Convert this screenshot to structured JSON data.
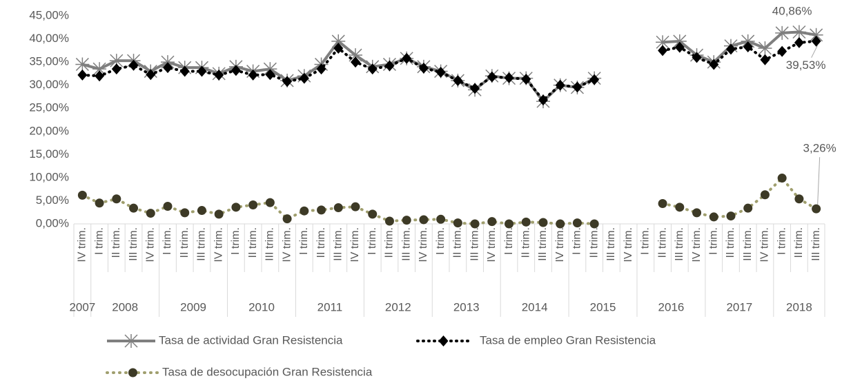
{
  "chart_data": {
    "type": "line",
    "categories": [
      "IV trim.",
      "I trim.",
      "II trim.",
      "III trim.",
      "IV trim.",
      "I trim.",
      "II trim.",
      "III trim.",
      "IV trim.",
      "I trim.",
      "II trim.",
      "III trim.",
      "IV trim.",
      "I trim.",
      "II trim.",
      "III trim.",
      "IV trim.",
      "I trim.",
      "II trim.",
      "III trim.",
      "IV trim.",
      "I trim.",
      "II trim.",
      "III trim.",
      "IV trim.",
      "I trim.",
      "II trim.",
      "III trim.",
      "IV trim.",
      "I trim.",
      "II trim.",
      "III trim.",
      "IV trim.",
      "I trim.",
      "II trim.",
      "III trim.",
      "IV trim.",
      "I trim.",
      "II trim.",
      "III trim.",
      "IV trim.",
      "I trim.",
      "II trim.",
      "III trim."
    ],
    "category_groups": [
      "2007",
      "2008",
      "2009",
      "2010",
      "2011",
      "2012",
      "2013",
      "2014",
      "2015",
      "2016",
      "2017",
      "2018"
    ],
    "ylim": [
      0,
      45
    ],
    "yticks": [
      {
        "value": 0,
        "label": "0,00%"
      },
      {
        "value": 5,
        "label": "5,00%"
      },
      {
        "value": 10,
        "label": "10,00%"
      },
      {
        "value": 15,
        "label": "15,00%"
      },
      {
        "value": 20,
        "label": "20,00%"
      },
      {
        "value": 25,
        "label": "25,00%"
      },
      {
        "value": 30,
        "label": "30,00%"
      },
      {
        "value": 35,
        "label": "35,00%"
      },
      {
        "value": 40,
        "label": "40,00%"
      },
      {
        "value": 45,
        "label": "45,00%"
      }
    ],
    "grid": false,
    "legend": "bottom",
    "series": [
      {
        "name": "Tasa de actividad Gran Resistencia",
        "color": "#7f7f7f",
        "marker": "x",
        "values": [
          34.5,
          33.5,
          35.3,
          35.3,
          33,
          35,
          33.8,
          33.8,
          32.5,
          34,
          33,
          33.5,
          31,
          32,
          34.5,
          39.5,
          36.5,
          34,
          34.5,
          35.8,
          34,
          33,
          31,
          29,
          32,
          31.5,
          31.5,
          26.5,
          30,
          29.5,
          31.5,
          null,
          null,
          null,
          39.3,
          39.5,
          36.5,
          35,
          38.5,
          39.5,
          38,
          41.3,
          41.5,
          40.86
        ],
        "value_labels": [
          null,
          null,
          null,
          null,
          null,
          null,
          null,
          null,
          null,
          null,
          null,
          null,
          null,
          null,
          null,
          null,
          null,
          null,
          null,
          null,
          null,
          null,
          null,
          null,
          null,
          null,
          null,
          null,
          null,
          null,
          null,
          null,
          null,
          null,
          null,
          null,
          null,
          null,
          null,
          null,
          null,
          null,
          null,
          "40,86%"
        ]
      },
      {
        "name": "Tasa de empleo Gran Resistencia",
        "color": "#000000",
        "marker": "diamond",
        "values": [
          32.2,
          32,
          33.5,
          34.3,
          32.3,
          33.8,
          33,
          33,
          32.2,
          33.2,
          32.2,
          32.3,
          30.8,
          31.5,
          33.5,
          38,
          35,
          33.5,
          34.2,
          35.8,
          33.7,
          32.8,
          31,
          29.3,
          31.8,
          31.6,
          31.3,
          26.8,
          30,
          29.6,
          31.2,
          null,
          null,
          null,
          37.5,
          38.2,
          36,
          34.5,
          37.8,
          38.3,
          35.5,
          37.3,
          39.2,
          39.53
        ],
        "value_labels": [
          null,
          null,
          null,
          null,
          null,
          null,
          null,
          null,
          null,
          null,
          null,
          null,
          null,
          null,
          null,
          null,
          null,
          null,
          null,
          null,
          null,
          null,
          null,
          null,
          null,
          null,
          null,
          null,
          null,
          null,
          null,
          null,
          null,
          null,
          null,
          null,
          null,
          null,
          null,
          null,
          null,
          null,
          null,
          "39,53%"
        ]
      },
      {
        "name": "Tasa de desocupación Gran Resistencia",
        "color": "#a09f6e",
        "marker": "circle",
        "values": [
          6.2,
          4.5,
          5.4,
          3.4,
          2.3,
          3.8,
          2.4,
          2.9,
          2.1,
          3.6,
          4.1,
          4.6,
          1.1,
          2.8,
          3.0,
          3.5,
          3.7,
          2.1,
          0.6,
          0.8,
          0.9,
          1.0,
          0.2,
          0.0,
          0.5,
          0.0,
          0.4,
          0.3,
          0.0,
          0.2,
          0.0,
          null,
          null,
          null,
          4.4,
          3.6,
          2.4,
          1.5,
          1.7,
          3.4,
          6.3,
          9.9,
          5.4,
          3.26
        ],
        "value_labels": [
          null,
          null,
          null,
          null,
          null,
          null,
          null,
          null,
          null,
          null,
          null,
          null,
          null,
          null,
          null,
          null,
          null,
          null,
          null,
          null,
          null,
          null,
          null,
          null,
          null,
          null,
          null,
          null,
          null,
          null,
          null,
          null,
          null,
          null,
          null,
          null,
          null,
          null,
          null,
          null,
          null,
          null,
          null,
          "3,26%"
        ]
      }
    ]
  }
}
